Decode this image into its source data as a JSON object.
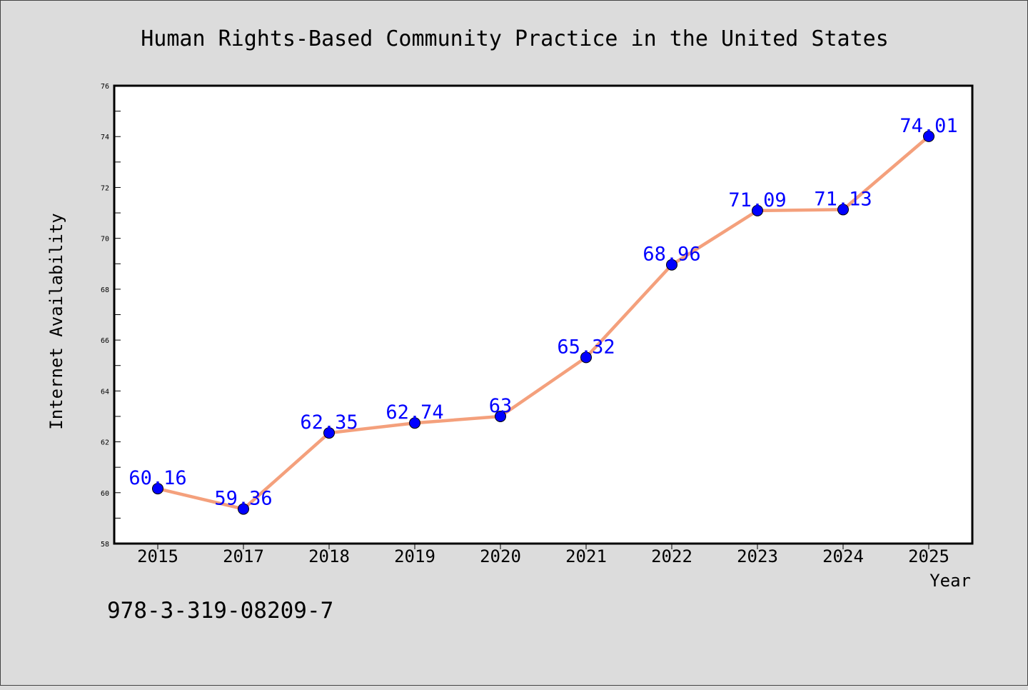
{
  "chart_data": {
    "type": "line",
    "title": "Human Rights-Based Community Practice in the United States",
    "xlabel": "Year",
    "ylabel": "Internet Availability",
    "categories": [
      "2015",
      "2017",
      "2018",
      "2019",
      "2020",
      "2021",
      "2022",
      "2023",
      "2024",
      "2025"
    ],
    "series": [
      {
        "values": [
          60.16,
          59.36,
          62.35,
          62.74,
          63,
          65.32,
          68.96,
          71.09,
          71.13,
          74.01
        ],
        "labels": [
          "60.16",
          "59.36",
          "62.35",
          "62.74",
          "63",
          "65.32",
          "68.96",
          "71.09",
          "71.13",
          "74.01"
        ],
        "line_color": "#f4a07c",
        "marker_color": "#0000ff",
        "label_color": "#0000ff"
      }
    ],
    "ylim": [
      58,
      76
    ],
    "yticks": [
      58,
      60,
      62,
      64,
      66,
      68,
      70,
      72,
      74,
      76
    ],
    "ytick_labels": [
      "58",
      "60",
      "62",
      "64",
      "66",
      "68",
      "70",
      "72",
      "74",
      "76"
    ],
    "grid": false,
    "legend": "none"
  },
  "footer": {
    "isbn": "978-3-319-08209-7"
  },
  "colors": {
    "background": "#dcdcdc",
    "plot_background": "#ffffff",
    "axis": "#000000",
    "text": "#000000"
  }
}
